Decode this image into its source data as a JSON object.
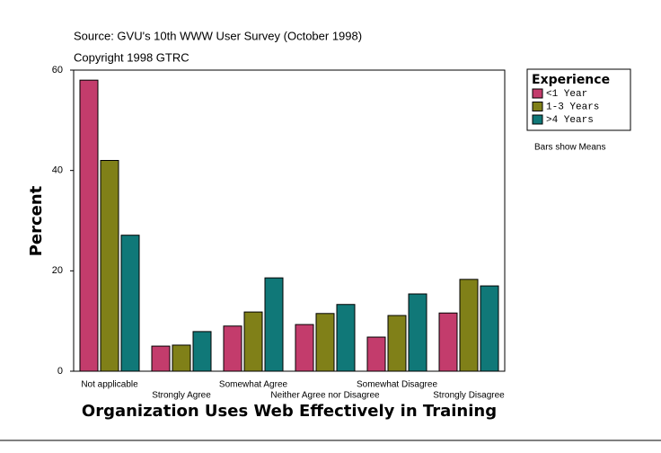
{
  "chart_data": {
    "type": "bar",
    "source": "Source: GVU's 10th WWW User Survey (October 1998)",
    "copyright": "Copyright 1998 GTRC",
    "x_label": "Organization Uses Web Effectively in Training",
    "y_label": "Percent",
    "legend_title": "Experience",
    "note": "Bars show Means",
    "categories": [
      "Not applicable",
      "Strongly Agree",
      "Somewhat Agree",
      "Neither Agree nor Disagree",
      "Somewhat Disagree",
      "Strongly Disagree"
    ],
    "series": [
      {
        "name": "<1 Year",
        "color": "#c33c6c",
        "values": [
          58,
          5.0,
          9.0,
          9.3,
          6.8,
          11.6
        ]
      },
      {
        "name": "1-3 Years",
        "color": "#808018",
        "values": [
          42,
          5.2,
          11.8,
          11.5,
          11.1,
          18.3
        ]
      },
      {
        "name": ">4 Years",
        "color": "#107878",
        "values": [
          27.1,
          7.9,
          18.6,
          13.3,
          15.4,
          17.0
        ]
      }
    ],
    "ylim": [
      0,
      60
    ],
    "yticks": [
      0,
      20,
      40,
      60
    ]
  }
}
